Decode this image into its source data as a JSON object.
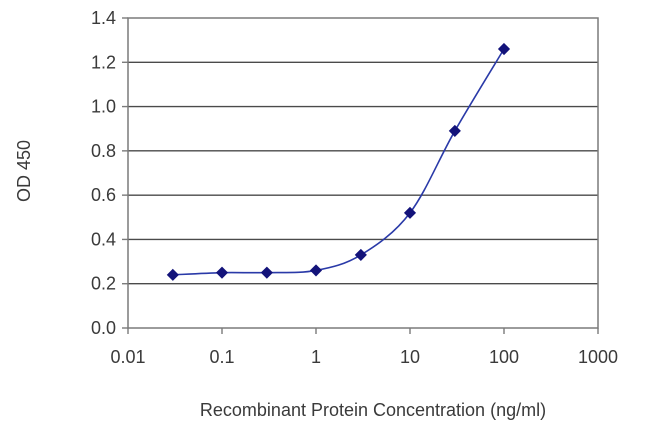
{
  "chart_data": {
    "type": "line",
    "title": "",
    "xlabel": "Recombinant Protein Concentration (ng/ml)",
    "ylabel": "OD 450",
    "x_scale": "log",
    "xlim": [
      0.01,
      1000
    ],
    "ylim": [
      0,
      1.4
    ],
    "x_ticks": [
      "0.01",
      "0.1",
      "1",
      "10",
      "100",
      "1000"
    ],
    "y_ticks": [
      "0.0",
      "0.2",
      "0.4",
      "0.6",
      "0.8",
      "1.0",
      "1.2",
      "1.4"
    ],
    "grid": "horizontal",
    "legend": "none",
    "series": [
      {
        "color": "#2a3aa8",
        "marker_color": "#13137a",
        "x": [
          0.03,
          0.1,
          0.3,
          1,
          3,
          10,
          30,
          100
        ],
        "y": [
          0.24,
          0.25,
          0.25,
          0.26,
          0.33,
          0.52,
          0.89,
          1.26
        ]
      }
    ]
  }
}
